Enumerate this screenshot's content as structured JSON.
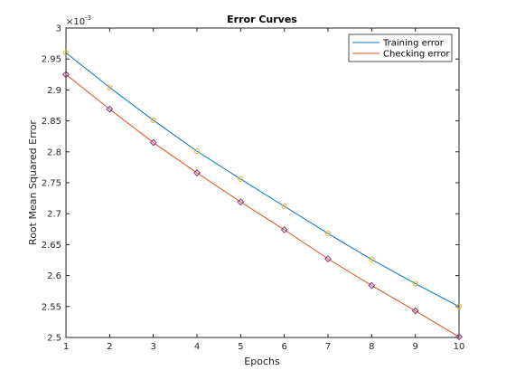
{
  "chart_data": {
    "type": "line",
    "title": "Error Curves",
    "xlabel": "Epochs",
    "ylabel": "Root Mean Squared Error",
    "y_multiplier_label": "×10",
    "y_multiplier_exponent": "-3",
    "xlim": [
      1,
      10
    ],
    "ylim": [
      2.5,
      3.0
    ],
    "x_ticks": [
      "1",
      "2",
      "3",
      "4",
      "5",
      "6",
      "7",
      "8",
      "9",
      "10"
    ],
    "y_ticks": [
      "2.5",
      "2.55",
      "2.6",
      "2.65",
      "2.7",
      "2.75",
      "2.8",
      "2.85",
      "2.9",
      "2.95",
      "3"
    ],
    "grid": false,
    "legend_position": "top-right",
    "x": [
      1,
      2,
      3,
      4,
      5,
      6,
      7,
      8,
      9,
      10
    ],
    "series": [
      {
        "name": "Training error",
        "values": [
          2.96,
          2.904,
          2.851,
          2.801,
          2.756,
          2.712,
          2.668,
          2.626,
          2.587,
          2.55
        ],
        "color": "#0072BD",
        "marker": "circle",
        "marker_color": "#EDB120"
      },
      {
        "name": "Checking error",
        "values": [
          2.925,
          2.869,
          2.815,
          2.766,
          2.719,
          2.674,
          2.627,
          2.584,
          2.543,
          2.501
        ],
        "color": "#D95319",
        "marker": "diamond",
        "marker_color": "#7E2F8E"
      }
    ]
  }
}
